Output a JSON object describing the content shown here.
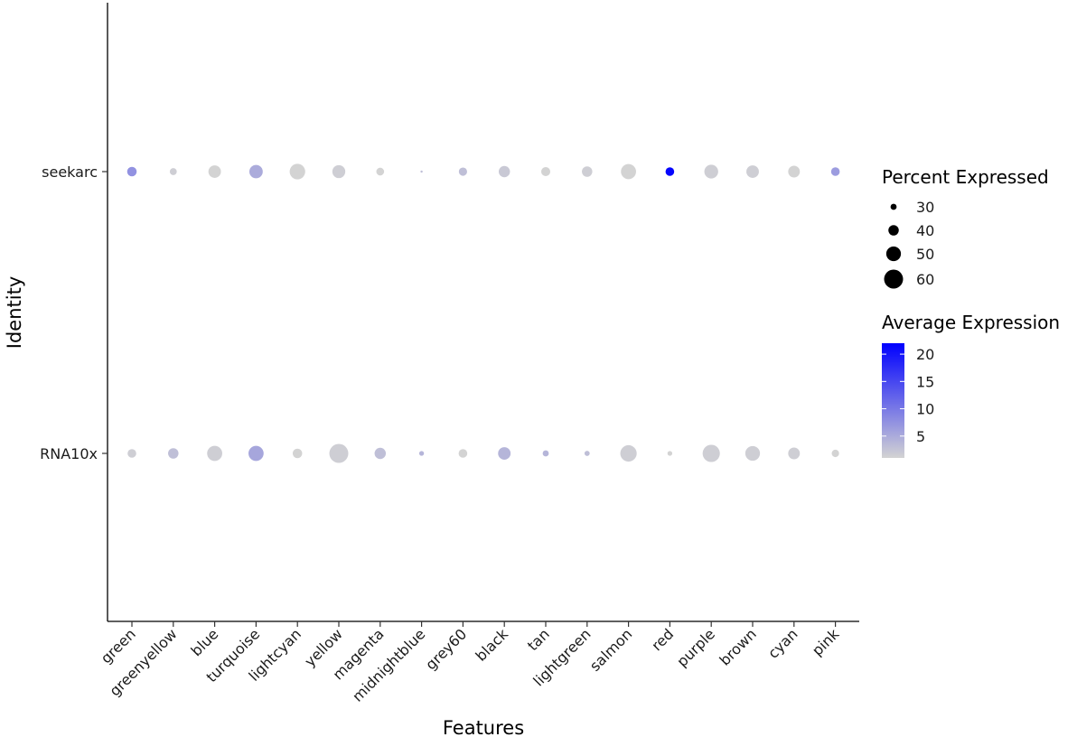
{
  "chart_data": {
    "type": "dotplot",
    "xlabel": "Features",
    "ylabel": "Identity",
    "features": [
      "green",
      "greenyellow",
      "blue",
      "turquoise",
      "lightcyan",
      "yellow",
      "magenta",
      "midnightblue",
      "grey60",
      "black",
      "tan",
      "lightgreen",
      "salmon",
      "red",
      "purple",
      "brown",
      "cyan",
      "pink"
    ],
    "identities": [
      "RNA10x",
      "seekarc"
    ],
    "series": [
      {
        "identity": "seekarc",
        "pct_exp": [
          38,
          32,
          45,
          47,
          52,
          46,
          34,
          21,
          35,
          42,
          37,
          40,
          51,
          36,
          48,
          45,
          43,
          36
        ],
        "avg_exp": [
          7.5,
          1.5,
          1.0,
          5.0,
          1.0,
          1.5,
          1.0,
          3.0,
          3.0,
          2.0,
          1.0,
          1.5,
          1.0,
          21.5,
          1.5,
          1.5,
          1.0,
          6.5
        ]
      },
      {
        "identity": "RNA10x",
        "pct_exp": [
          36,
          40,
          51,
          51,
          38,
          60,
          42,
          27,
          36,
          45,
          30,
          28,
          54,
          27,
          56,
          50,
          43,
          33
        ],
        "avg_exp": [
          1.5,
          3.0,
          1.5,
          5.5,
          1.0,
          1.5,
          3.0,
          4.0,
          1.0,
          4.0,
          4.0,
          3.0,
          1.5,
          1.0,
          1.5,
          1.5,
          1.5,
          1.0
        ]
      }
    ],
    "legend": {
      "size_title": "Percent Expressed",
      "size_breaks": [
        30,
        40,
        50,
        60
      ],
      "color_title": "Average Expression",
      "color_breaks": [
        5,
        10,
        15,
        20
      ],
      "color_range": [
        1,
        22
      ],
      "color_low": "#d3d3d3",
      "color_high": "#0000ff",
      "placement": "right"
    }
  }
}
